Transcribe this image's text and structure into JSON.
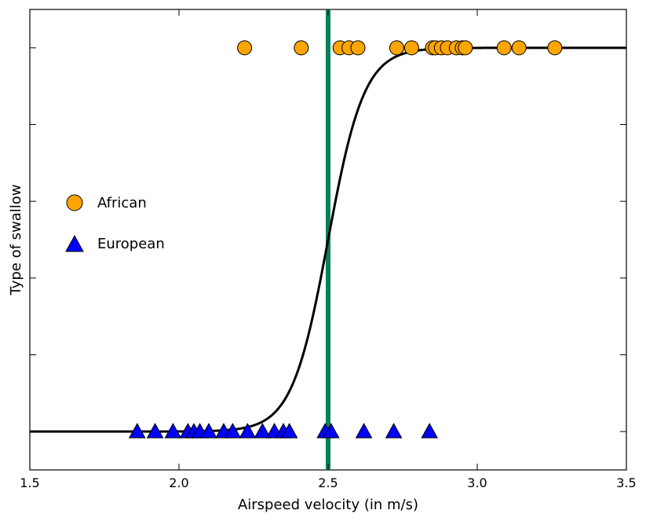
{
  "chart_data": {
    "type": "scatter",
    "xlabel": "Airspeed velocity (in m/s)",
    "ylabel": "Type of swallow",
    "xlim": [
      1.5,
      3.5
    ],
    "ylim": [
      -0.1,
      1.1
    ],
    "x_ticks": [
      1.5,
      2.0,
      2.5,
      3.0,
      3.5
    ],
    "x_tick_labels": [
      "1.5",
      "2.0",
      "2.5",
      "3.0",
      "3.5"
    ],
    "y_ticks": [
      0,
      0.2,
      0.4,
      0.6,
      0.8,
      1.0
    ],
    "grid": false,
    "legend": "left",
    "series": [
      {
        "name": "African",
        "marker": "circle",
        "color": "#ffa500",
        "y": 1,
        "x": [
          2.22,
          2.41,
          2.54,
          2.57,
          2.6,
          2.73,
          2.78,
          2.85,
          2.86,
          2.88,
          2.9,
          2.93,
          2.95,
          2.96,
          3.09,
          3.14,
          3.26
        ]
      },
      {
        "name": "European",
        "marker": "triangle",
        "color": "#0000ff",
        "y": 0,
        "x": [
          1.86,
          1.92,
          1.98,
          2.03,
          2.05,
          2.07,
          2.1,
          2.15,
          2.18,
          2.23,
          2.28,
          2.32,
          2.35,
          2.37,
          2.49,
          2.51,
          2.62,
          2.72,
          2.84
        ]
      }
    ],
    "curve": {
      "type": "logistic",
      "color": "#000000",
      "midpoint": 2.5,
      "steepness": 16.5
    },
    "threshold_line": {
      "x": 2.5,
      "color": "#0b7f5a"
    }
  }
}
